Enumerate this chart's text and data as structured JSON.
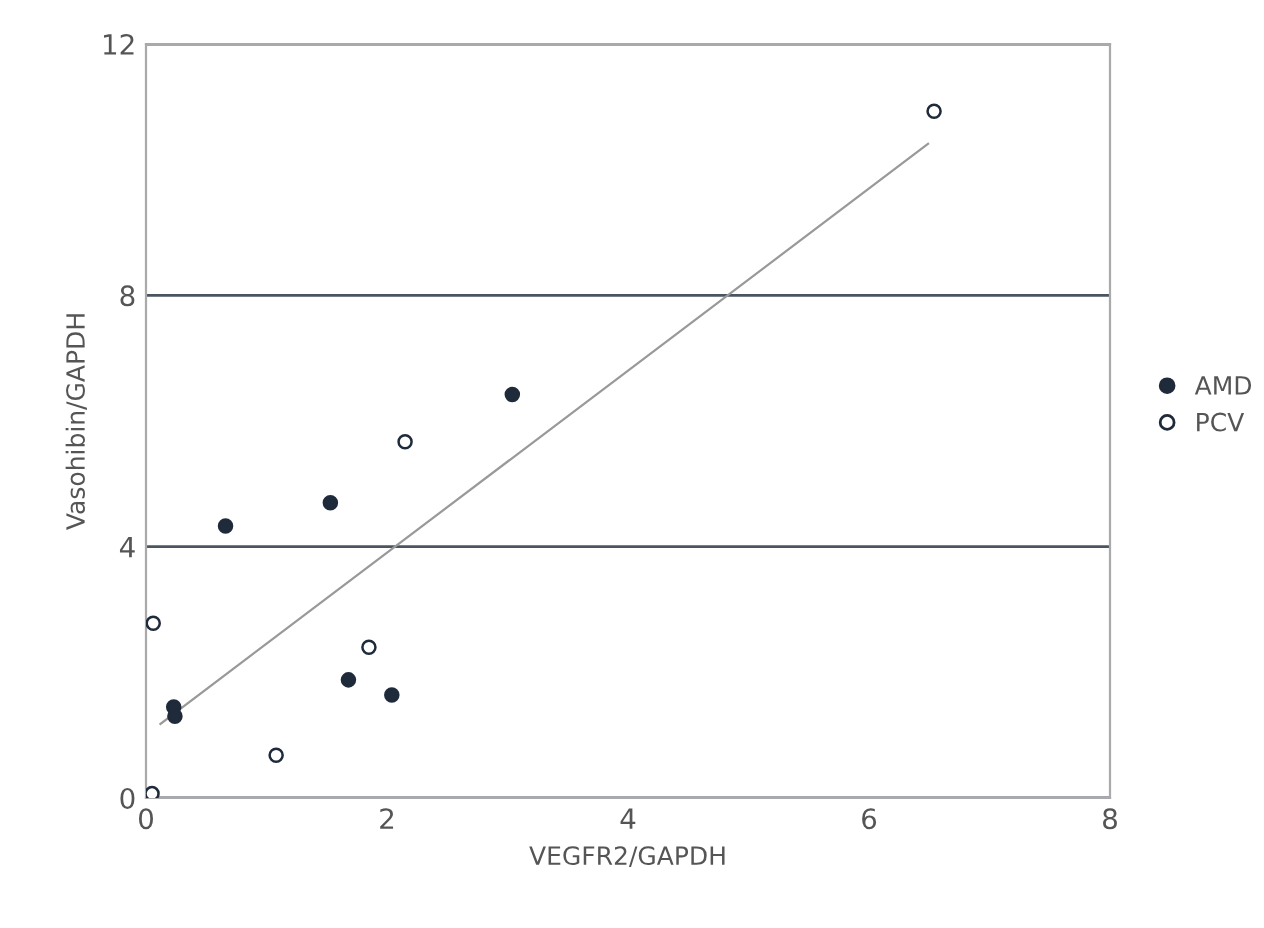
{
  "chart_data": {
    "type": "scatter",
    "xlabel": "VEGFR2/GAPDH",
    "ylabel": "Vasohibin/GAPDH",
    "xlim": [
      0,
      8
    ],
    "ylim": [
      0,
      12
    ],
    "xticks": [
      0,
      2,
      4,
      6,
      8
    ],
    "yticks": [
      0,
      4,
      8,
      12
    ],
    "grid": "y",
    "legend": "right",
    "series": [
      {
        "name": "AMD",
        "color": "#1f2a3a",
        "marker": "circle",
        "x": [
          0.66,
          1.53,
          3.04,
          1.68,
          2.04,
          0.23,
          0.24
        ],
        "values": [
          4.33,
          4.7,
          6.42,
          1.88,
          1.64,
          1.45,
          1.3
        ]
      },
      {
        "name": "PCV",
        "color": "#ffffff",
        "marker": "circle",
        "x": [
          0.06,
          0.05,
          1.08,
          1.85,
          2.15,
          6.54
        ],
        "values": [
          2.78,
          0.07,
          0.68,
          2.4,
          5.67,
          10.93
        ]
      },
      {
        "type": "line",
        "color": "#999999",
        "x": [
          0.12,
          6.49
        ],
        "values": [
          1.18,
          10.41
        ]
      }
    ]
  }
}
